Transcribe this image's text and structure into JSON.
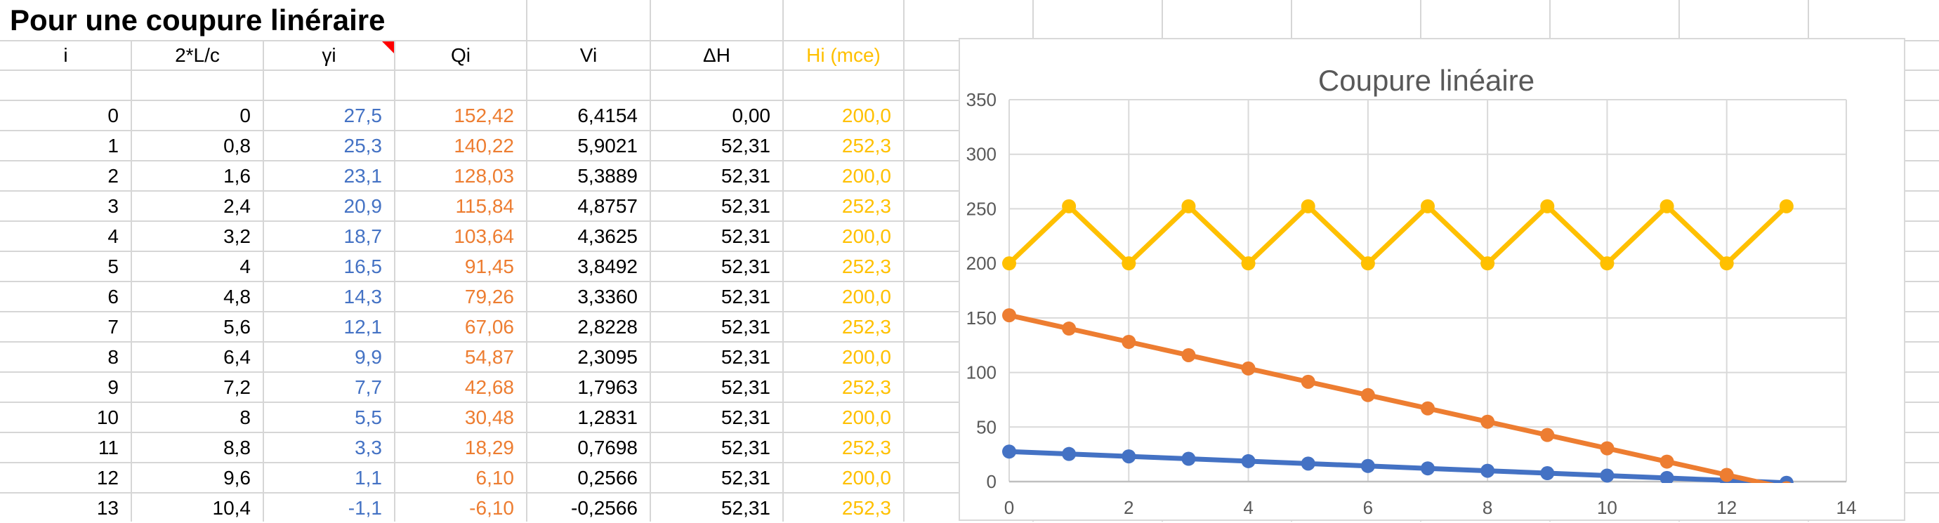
{
  "sheet": {
    "title": "Pour une coupure linéraire",
    "columns": [
      "i",
      "2*L/c",
      "γi",
      "Qi",
      "Vi",
      "ΔH",
      "Hi (mce)"
    ],
    "comment_marker": {
      "column": "γi"
    },
    "rows": [
      [
        "0",
        "0",
        "27,5",
        "152,42",
        "6,4154",
        "0,00",
        "200,0"
      ],
      [
        "1",
        "0,8",
        "25,3",
        "140,22",
        "5,9021",
        "52,31",
        "252,3"
      ],
      [
        "2",
        "1,6",
        "23,1",
        "128,03",
        "5,3889",
        "52,31",
        "200,0"
      ],
      [
        "3",
        "2,4",
        "20,9",
        "115,84",
        "4,8757",
        "52,31",
        "252,3"
      ],
      [
        "4",
        "3,2",
        "18,7",
        "103,64",
        "4,3625",
        "52,31",
        "200,0"
      ],
      [
        "5",
        "4",
        "16,5",
        "91,45",
        "3,8492",
        "52,31",
        "252,3"
      ],
      [
        "6",
        "4,8",
        "14,3",
        "79,26",
        "3,3360",
        "52,31",
        "200,0"
      ],
      [
        "7",
        "5,6",
        "12,1",
        "67,06",
        "2,8228",
        "52,31",
        "252,3"
      ],
      [
        "8",
        "6,4",
        "9,9",
        "54,87",
        "2,3095",
        "52,31",
        "200,0"
      ],
      [
        "9",
        "7,2",
        "7,7",
        "42,68",
        "1,7963",
        "52,31",
        "252,3"
      ],
      [
        "10",
        "8",
        "5,5",
        "30,48",
        "1,2831",
        "52,31",
        "200,0"
      ],
      [
        "11",
        "8,8",
        "3,3",
        "18,29",
        "0,7698",
        "52,31",
        "252,3"
      ],
      [
        "12",
        "9,6",
        "1,1",
        "6,10",
        "0,2566",
        "52,31",
        "200,0"
      ],
      [
        "13",
        "10,4",
        "-1,1",
        "-6,10",
        "-0,2566",
        "52,31",
        "252,3"
      ]
    ]
  },
  "chart_data": {
    "type": "line",
    "title": "Coupure linéaire",
    "x": [
      0,
      1,
      2,
      3,
      4,
      5,
      6,
      7,
      8,
      9,
      10,
      11,
      12,
      13
    ],
    "series": [
      {
        "name": "γi",
        "color": "#4472C4",
        "values": [
          27.5,
          25.3,
          23.1,
          20.9,
          18.7,
          16.5,
          14.3,
          12.1,
          9.9,
          7.7,
          5.5,
          3.3,
          1.1,
          -1.1
        ]
      },
      {
        "name": "Qi",
        "color": "#ED7D31",
        "values": [
          152.42,
          140.22,
          128.03,
          115.84,
          103.64,
          91.45,
          79.26,
          67.06,
          54.87,
          42.68,
          30.48,
          18.29,
          6.1,
          -6.1
        ]
      },
      {
        "name": "Hi (mce)",
        "color": "#FFC000",
        "values": [
          200.0,
          252.3,
          200.0,
          252.3,
          200.0,
          252.3,
          200.0,
          252.3,
          200.0,
          252.3,
          200.0,
          252.3,
          200.0,
          252.3
        ]
      }
    ],
    "xlim": [
      0,
      14
    ],
    "ylim": [
      0,
      350
    ],
    "x_ticks": [
      0,
      2,
      4,
      6,
      8,
      10,
      12,
      14
    ],
    "y_ticks": [
      0,
      50,
      100,
      150,
      200,
      250,
      300,
      350
    ],
    "grid": true,
    "legend": "none"
  },
  "colors": {
    "font_blue": "#4472C4",
    "font_orange": "#ED7D31",
    "font_gold": "#FFC000",
    "chart_gray_text": "#595959",
    "gridline": "#D6D6D6",
    "chart_gridline": "#D9D9D9",
    "axis_line": "#BFBFBF",
    "comment_marker": "#FF0000"
  }
}
